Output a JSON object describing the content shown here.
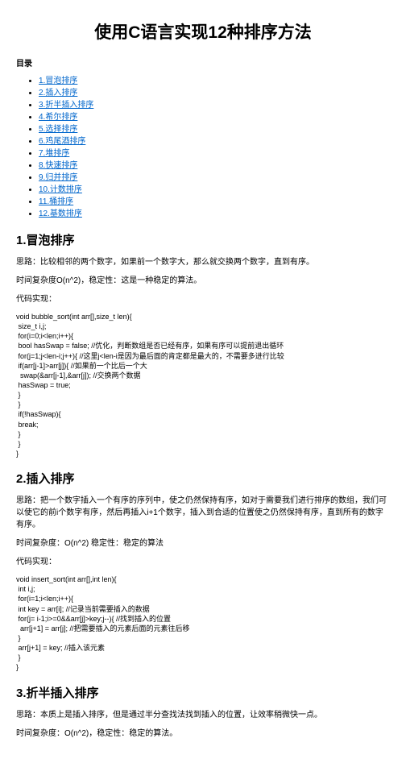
{
  "title": "使用C语言实现12种排序方法",
  "toc_label": "目录",
  "toc": [
    "1.冒泡排序",
    "2.插入排序",
    "3.折半插入排序",
    "4.希尔排序",
    "5.选择排序",
    "6.鸡尾酒排序",
    "7.堆排序",
    "8.快速排序",
    "9.归并排序",
    "10.计数排序",
    "11.桶排序",
    "12.基数排序"
  ],
  "s1": {
    "heading": "1.冒泡排序",
    "p1": "思路：比较相邻的两个数字，如果前一个数字大，那么就交换两个数字，直到有序。",
    "p2": "时间复杂度O(n^2)，稳定性：这是一种稳定的算法。",
    "p3": "代码实现：",
    "code": "void bubble_sort(int arr[],size_t len){\n size_t i,j;\n for(i=0;i<len;i++){\n bool hasSwap = false; //优化，判断数组是否已经有序，如果有序可以提前退出循环\n for(j=1;j<len-i;j++){ //这里j<len-i是因为最后面的肯定都是最大的，不需要多进行比较\n if(arr[j-1]>arr[j]){ //如果前一个比后一个大\n  swap(&arr[j-1],&arr[j]); //交换两个数据\n hasSwap = true;\n }\n }\n if(!hasSwap){\n break;\n }\n }\n}"
  },
  "s2": {
    "heading": "2.插入排序",
    "p1": "思路：把一个数字插入一个有序的序列中，使之仍然保持有序，如对于需要我们进行排序的数组，我们可以使它的前i个数字有序，然后再插入i+1个数字，插入到合适的位置使之仍然保持有序，直到所有的数字有序。",
    "p2": "时间复杂度：O(n^2) 稳定性：稳定的算法",
    "p3": "代码实现：",
    "code": "void insert_sort(int arr[],int len){\n int i,j;\n for(i=1;i<len;i++){\n int key = arr[i]; //记录当前需要插入的数据\n for(j= i-1;i>=0&&arr[j]>key;j--){ //找到插入的位置\n  arr[j+1] = arr[j]; //把需要插入的元素后面的元素往后移\n }\n arr[j+1] = key; //插入该元素\n }\n}"
  },
  "s3": {
    "heading": "3.折半插入排序",
    "p1": "思路：本质上是插入排序，但是通过半分查找法找到插入的位置，让效率稍微快一点。",
    "p2": "时间复杂度：O(n^2)，稳定性：稳定的算法。"
  }
}
